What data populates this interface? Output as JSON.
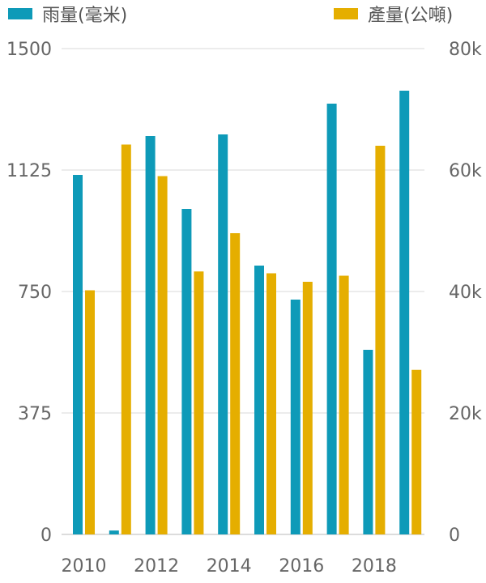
{
  "chart_data": {
    "type": "bar",
    "categories": [
      "2010",
      "2011",
      "2012",
      "2013",
      "2014",
      "2015",
      "2016",
      "2017",
      "2018",
      "2019"
    ],
    "x_tick_labels": [
      "2010",
      "2012",
      "2014",
      "2016",
      "2018"
    ],
    "series": [
      {
        "name": "雨量(毫米)",
        "axis": "left",
        "color": "#0e9ab8",
        "values": [
          1110,
          12,
          1230,
          1005,
          1235,
          830,
          725,
          1330,
          570,
          1370
        ]
      },
      {
        "name": "產量(公噸)",
        "axis": "right",
        "color": "#e5ae00",
        "values": [
          40200,
          64200,
          59000,
          43300,
          49600,
          43000,
          41600,
          42600,
          64000,
          27100
        ]
      }
    ],
    "left_axis": {
      "ylim": [
        0,
        1500
      ],
      "ticks": [
        "0",
        "375",
        "750",
        "1125",
        "1500"
      ]
    },
    "right_axis": {
      "ylim": [
        0,
        80000
      ],
      "ticks": [
        "0",
        "20k",
        "40k",
        "60k",
        "80k"
      ]
    },
    "grid": true,
    "legend": "top"
  }
}
